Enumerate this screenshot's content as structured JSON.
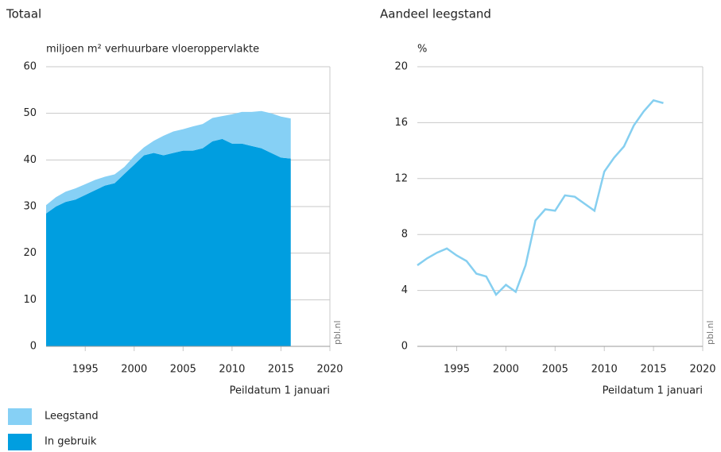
{
  "chart_data": [
    {
      "type": "stacked-area",
      "title": "Totaal",
      "ylabel": "miljoen m² verhuurbare vloeroppervlakte",
      "xlabel": "Peildatum 1 januari",
      "source": "pbl.nl",
      "x": [
        1991,
        1992,
        1993,
        1994,
        1995,
        1996,
        1997,
        1998,
        1999,
        2000,
        2001,
        2002,
        2003,
        2004,
        2005,
        2006,
        2007,
        2008,
        2009,
        2010,
        2011,
        2012,
        2013,
        2014,
        2015,
        2016
      ],
      "series": [
        {
          "name": "Leegstand",
          "color": "#86d0f5",
          "values": [
            1.8,
            2,
            2.2,
            2.4,
            2.3,
            2.2,
            1.9,
            1.9,
            1.5,
            1.8,
            1.7,
            2.6,
            4.2,
            4.6,
            4.6,
            5.2,
            5.2,
            5.0,
            4.9,
            6.3,
            6.8,
            7.3,
            8.0,
            8.5,
            8.8,
            8.6
          ]
        },
        {
          "name": "In gebruik",
          "color": "#009ee0",
          "values": [
            28.5,
            30,
            31,
            31.5,
            32.5,
            33.5,
            34.5,
            35,
            37,
            39,
            41,
            41.5,
            41,
            41.5,
            42,
            42,
            42.5,
            44,
            44.5,
            43.5,
            43.5,
            43,
            42.5,
            41.5,
            40.5,
            40.3
          ]
        }
      ],
      "xlim": [
        1991,
        2020
      ],
      "xticks": [
        1995,
        2000,
        2005,
        2010,
        2015,
        2020
      ],
      "ylim": [
        0,
        60
      ],
      "yticks": [
        0,
        10,
        20,
        30,
        40,
        50,
        60
      ],
      "grid": true
    },
    {
      "type": "line",
      "title": "Aandeel leegstand",
      "ylabel": "%",
      "xlabel": "Peildatum 1 januari",
      "source": "pbl.nl",
      "x": [
        1991,
        1992,
        1993,
        1994,
        1995,
        1996,
        1997,
        1998,
        1999,
        2000,
        2001,
        2002,
        2003,
        2004,
        2005,
        2006,
        2007,
        2008,
        2009,
        2010,
        2011,
        2012,
        2013,
        2014,
        2015,
        2016
      ],
      "series": [
        {
          "name": "Aandeel leegstand",
          "color": "#86cff0",
          "values": [
            5.8,
            6.3,
            6.7,
            7.0,
            6.5,
            6.1,
            5.2,
            5.0,
            3.7,
            4.4,
            3.9,
            5.8,
            9.0,
            9.8,
            9.7,
            10.8,
            10.7,
            10.2,
            9.7,
            12.5,
            13.5,
            14.3,
            15.8,
            16.8,
            17.6,
            17.4
          ]
        }
      ],
      "xlim": [
        1991,
        2020
      ],
      "xticks": [
        1995,
        2000,
        2005,
        2010,
        2015,
        2020
      ],
      "ylim": [
        0,
        20
      ],
      "yticks": [
        0,
        4,
        8,
        12,
        16,
        20
      ],
      "grid": true
    }
  ]
}
